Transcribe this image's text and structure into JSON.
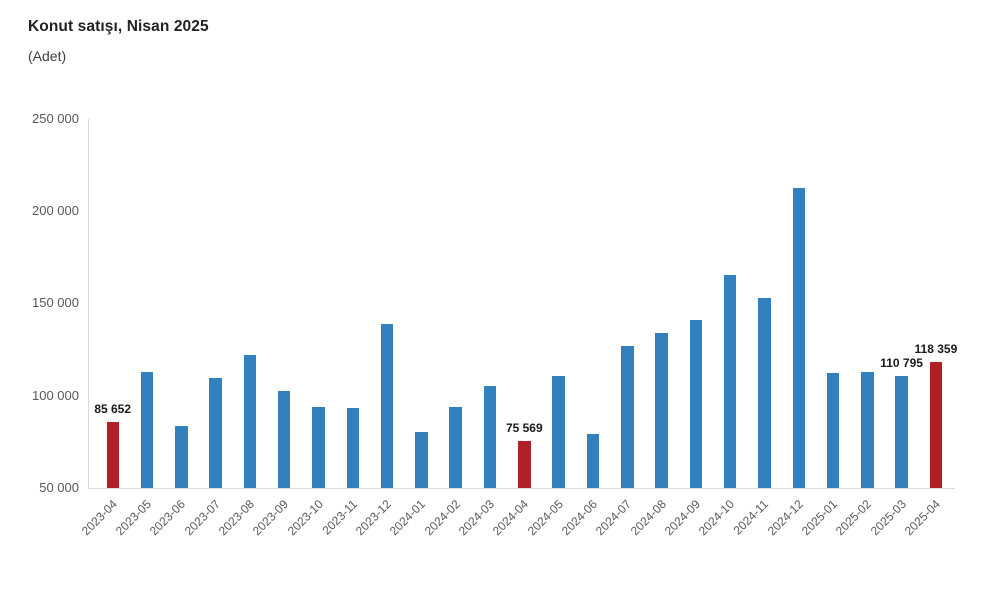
{
  "header": {
    "title": "Konut satışı, Nisan 2025",
    "subtitle": "(Adet)"
  },
  "chart_data": {
    "type": "bar",
    "title": "Konut satışı, Nisan 2025",
    "unit_label": "(Adet)",
    "xlabel": "",
    "ylabel": "Adet",
    "ylim": [
      50000,
      250000
    ],
    "grid": false,
    "legend": "none",
    "yticks": [
      {
        "value": 250000,
        "label": "250 000"
      },
      {
        "value": 200000,
        "label": "200 000"
      },
      {
        "value": 150000,
        "label": "150 000"
      },
      {
        "value": 100000,
        "label": "100 000"
      },
      {
        "value": 50000,
        "label": "50 000"
      }
    ],
    "categories": [
      "2023-04",
      "2023-05",
      "2023-06",
      "2023-07",
      "2023-08",
      "2023-09",
      "2023-10",
      "2023-11",
      "2023-12",
      "2024-01",
      "2024-02",
      "2024-03",
      "2024-04",
      "2024-05",
      "2024-06",
      "2024-07",
      "2024-08",
      "2024-09",
      "2024-10",
      "2024-11",
      "2024-12",
      "2025-01",
      "2025-02",
      "2025-03",
      "2025-04"
    ],
    "values": [
      85652,
      113024,
      83636,
      109548,
      122091,
      102656,
      93761,
      93514,
      138577,
      80308,
      93902,
      105476,
      75569,
      110588,
      79313,
      127088,
      134155,
      140919,
      165138,
      153014,
      212637,
      112173,
      112818,
      110795,
      118359
    ],
    "highlight_indices": [
      0,
      12,
      24
    ],
    "data_labels": [
      {
        "index": 0,
        "text": "85 652"
      },
      {
        "index": 12,
        "text": "75 569"
      },
      {
        "index": 23,
        "text": "110 795"
      },
      {
        "index": 24,
        "text": "118 359"
      }
    ],
    "colors": {
      "bar": "#3380be",
      "highlight": "#b02125",
      "axis_line": "#d9d9d9",
      "tick_text": "#595959",
      "data_label_text": "#1a1a1a"
    }
  }
}
